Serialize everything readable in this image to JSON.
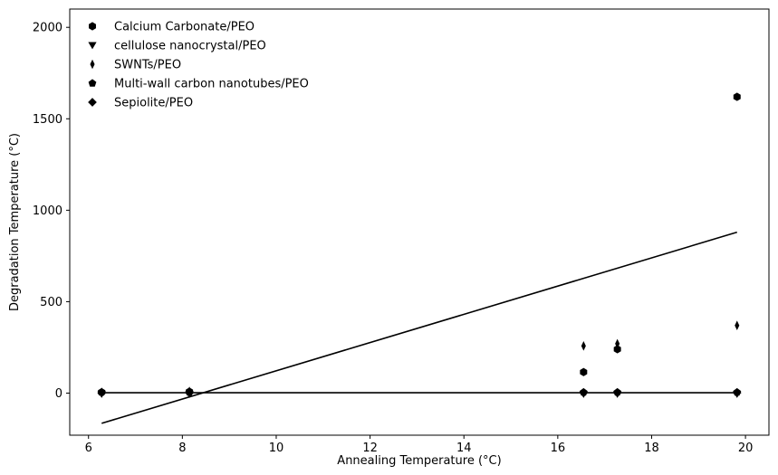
{
  "chart_data": {
    "type": "scatter",
    "title": "",
    "xlabel": "Annealing Temperature (°C)",
    "ylabel": "Degradation Temperature (°C)",
    "xlim": [
      5.6,
      20.5
    ],
    "ylim": [
      -230,
      2100
    ],
    "xticks": [
      6,
      8,
      10,
      12,
      14,
      16,
      18,
      20
    ],
    "yticks": [
      0,
      500,
      1000,
      1500,
      2000
    ],
    "grid": false,
    "legend_position": "top-left",
    "series": [
      {
        "name": "Calcium Carbonate/PEO",
        "marker": "hexagon",
        "points": [
          [
            6.28,
            5
          ],
          [
            8.15,
            8
          ],
          [
            16.55,
            115
          ],
          [
            17.27,
            240
          ],
          [
            19.82,
            1620
          ]
        ]
      },
      {
        "name": "cellulose nanocrystal/PEO",
        "marker": "triangle-down",
        "points": [
          [
            6.28,
            -5
          ],
          [
            8.15,
            -5
          ],
          [
            16.55,
            -5
          ],
          [
            17.27,
            -5
          ],
          [
            19.82,
            -5
          ]
        ]
      },
      {
        "name": "SWNTs/PEO",
        "marker": "thin-diamond",
        "points": [
          [
            6.28,
            5
          ],
          [
            8.15,
            10
          ],
          [
            16.55,
            258
          ],
          [
            17.27,
            270
          ],
          [
            19.82,
            370
          ]
        ]
      },
      {
        "name": "Multi-wall carbon nanotubes/PEO",
        "marker": "pentagon",
        "points": [
          [
            6.28,
            5
          ],
          [
            8.15,
            5
          ],
          [
            16.55,
            5
          ],
          [
            17.27,
            5
          ],
          [
            19.82,
            5
          ]
        ]
      },
      {
        "name": "Sepiolite/PEO",
        "marker": "diamond",
        "points": [
          [
            6.28,
            2
          ],
          [
            8.15,
            2
          ],
          [
            16.55,
            2
          ],
          [
            17.27,
            2
          ],
          [
            19.82,
            2
          ]
        ]
      }
    ],
    "lines": [
      {
        "from": [
          6.28,
          -165
        ],
        "to": [
          19.82,
          880
        ]
      },
      {
        "from": [
          6.28,
          2
        ],
        "to": [
          19.82,
          2
        ]
      }
    ]
  }
}
